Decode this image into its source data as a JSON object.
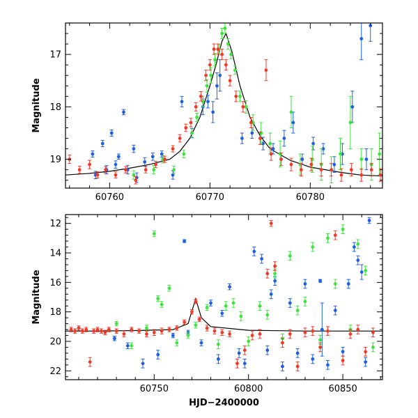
{
  "colors": {
    "blue": "#1f5fe0",
    "green": "#3ee33e",
    "red": "#ef3a2a",
    "model": "#000000"
  },
  "chart_data": [
    {
      "type": "scatter",
      "title": "",
      "xlabel": "",
      "ylabel": "Magnitude",
      "xlim": [
        60755.6,
        60787.2
      ],
      "ylim": [
        19.55,
        16.4
      ],
      "y_inverted": true,
      "xticks": [
        60760,
        60770,
        60780
      ],
      "yticks": [
        17,
        18,
        19
      ],
      "model_curve": {
        "x": [
          60755.6,
          60758,
          60760,
          60762,
          60764,
          60766,
          60767,
          60768,
          60769,
          60770,
          60770.6,
          60771.2,
          60771.6,
          60772.2,
          60773,
          60774,
          60775,
          60776,
          60778,
          60780,
          60783,
          60785,
          60787.2
        ],
        "y": [
          19.3,
          19.27,
          19.23,
          19.17,
          19.1,
          19.0,
          18.85,
          18.6,
          18.2,
          17.6,
          17.2,
          16.75,
          16.6,
          16.95,
          17.6,
          18.2,
          18.55,
          18.8,
          19.02,
          19.15,
          19.25,
          19.3,
          19.32
        ]
      },
      "series": [
        {
          "name": "",
          "color": "blue",
          "x": [
            60758.3,
            60758.6,
            60759.3,
            60759.7,
            60760.2,
            60760.6,
            60760.9,
            60761.4,
            60761.8,
            60762.4,
            60762.7,
            60763.5,
            60764.3,
            60765.2,
            60766.3,
            60767.2,
            60768.2,
            60769.3,
            60769.8,
            60770.3,
            60770.7,
            60771.0,
            60773.2,
            60774.2,
            60775.3,
            60776.3,
            60777.4,
            60778.3,
            60779.2,
            60780.3,
            60781.3,
            60782.4,
            60783.2,
            60784.2,
            60785.1,
            60785.6,
            60786.0
          ],
          "y": [
            18.9,
            19.3,
            18.7,
            19.2,
            18.5,
            19.1,
            18.95,
            18.1,
            19.2,
            18.8,
            19.35,
            19.05,
            18.95,
            18.9,
            19.3,
            17.9,
            18.5,
            18.0,
            17.9,
            18.1,
            17.6,
            17.4,
            18.6,
            18.5,
            18.7,
            18.8,
            18.6,
            18.3,
            19.0,
            18.7,
            18.8,
            19.1,
            18.9,
            18.0,
            16.7,
            19.0,
            16.45
          ],
          "yerr": [
            0.06,
            0.07,
            0.06,
            0.08,
            0.06,
            0.07,
            0.05,
            0.05,
            0.08,
            0.07,
            0.09,
            0.08,
            0.07,
            0.06,
            0.08,
            0.1,
            0.09,
            0.15,
            0.12,
            0.2,
            0.25,
            0.3,
            0.1,
            0.1,
            0.12,
            0.1,
            0.15,
            0.2,
            0.1,
            0.12,
            0.1,
            0.15,
            0.2,
            0.3,
            0.4,
            0.2,
            0.3
          ]
        },
        {
          "name": "",
          "color": "green",
          "x": [
            60762.4,
            60764.4,
            60765.3,
            60766.4,
            60767.4,
            60768.2,
            60768.7,
            60769.3,
            60769.7,
            60770.1,
            60770.5,
            60770.9,
            60771.2,
            60771.5,
            60771.8,
            60772.1,
            60772.5,
            60773.0,
            60773.6,
            60774.3,
            60775.1,
            60776.0,
            60777.0,
            60778.1,
            60779.0,
            60780.2,
            60781.1,
            60782.1,
            60783.0,
            60784.0,
            60785.1,
            60786.1,
            60786.9
          ],
          "y": [
            19.3,
            19.2,
            19.0,
            19.2,
            18.9,
            18.5,
            18.2,
            17.9,
            17.6,
            17.4,
            17.1,
            16.9,
            16.6,
            16.5,
            16.8,
            17.0,
            17.3,
            17.8,
            18.0,
            18.3,
            18.5,
            18.7,
            18.9,
            18.1,
            19.1,
            19.0,
            19.1,
            19.2,
            18.9,
            18.3,
            19.0,
            19.1,
            18.9
          ],
          "yerr": [
            0.08,
            0.08,
            0.07,
            0.07,
            0.07,
            0.08,
            0.08,
            0.1,
            0.12,
            0.15,
            0.12,
            0.1,
            0.1,
            0.1,
            0.1,
            0.08,
            0.08,
            0.1,
            0.12,
            0.15,
            0.2,
            0.2,
            0.25,
            0.3,
            0.2,
            0.25,
            0.3,
            0.25,
            0.3,
            0.5,
            0.2,
            0.3,
            0.4
          ]
        },
        {
          "name": "",
          "color": "red",
          "x": [
            60756.0,
            60757.0,
            60758.0,
            60758.8,
            60759.6,
            60760.6,
            60761.6,
            60762.6,
            60763.6,
            60764.6,
            60765.5,
            60766.3,
            60767.0,
            60767.6,
            60768.1,
            60768.6,
            60769.1,
            60769.6,
            60770.0,
            60770.4,
            60770.8,
            60771.2,
            60771.6,
            60772.0,
            60772.6,
            60773.3,
            60774.1,
            60775.0,
            60775.6,
            60776.1,
            60777.1,
            60778.1,
            60779.1,
            60780.1,
            60781.1,
            60782.1,
            60783.1,
            60784.1,
            60785.1,
            60786.1,
            60787.0
          ],
          "y": [
            19.0,
            19.2,
            19.1,
            19.3,
            19.2,
            19.3,
            19.2,
            19.4,
            19.2,
            19.1,
            19.0,
            18.8,
            18.6,
            18.4,
            18.3,
            18.0,
            17.8,
            17.4,
            17.2,
            16.9,
            16.9,
            17.0,
            17.2,
            17.5,
            17.8,
            18.0,
            18.3,
            18.6,
            17.3,
            18.9,
            19.0,
            19.1,
            19.2,
            19.1,
            19.2,
            19.2,
            19.3,
            19.2,
            19.3,
            19.2,
            19.3
          ],
          "yerr": [
            0.08,
            0.07,
            0.08,
            0.06,
            0.06,
            0.06,
            0.06,
            0.07,
            0.06,
            0.06,
            0.06,
            0.06,
            0.07,
            0.07,
            0.08,
            0.08,
            0.09,
            0.1,
            0.1,
            0.1,
            0.1,
            0.1,
            0.1,
            0.1,
            0.1,
            0.1,
            0.1,
            0.12,
            0.2,
            0.12,
            0.12,
            0.12,
            0.12,
            0.12,
            0.12,
            0.12,
            0.12,
            0.12,
            0.12,
            0.12,
            0.12
          ]
        }
      ]
    },
    {
      "type": "scatter",
      "title": "",
      "xlabel": "HJD−2400000",
      "ylabel": "Magnitude",
      "xlim": [
        60703,
        60871
      ],
      "ylim": [
        22.6,
        11.4
      ],
      "y_inverted": true,
      "xticks": [
        60750,
        60800,
        60850
      ],
      "yticks": [
        12,
        14,
        16,
        18,
        20,
        22
      ],
      "model_curve": {
        "x": [
          60703,
          60720,
          60740,
          60760,
          60768,
          60772,
          60775,
          60780,
          60800,
          60830,
          60871
        ],
        "y": [
          19.3,
          19.3,
          19.27,
          19.2,
          18.8,
          17.1,
          18.4,
          19.0,
          19.25,
          19.3,
          19.3
        ]
      },
      "series": [
        {
          "name": "",
          "color": "blue",
          "x": [
            60729,
            60736,
            60744,
            60752,
            60760,
            60766,
            60768,
            60775,
            60780,
            60784,
            60786,
            60790,
            60795,
            60798,
            60803,
            60807,
            60810,
            60812,
            60814,
            60818,
            60822,
            60826,
            60830,
            60834,
            60838,
            60839,
            60842,
            60846,
            60850,
            60853,
            60856,
            60858,
            60860,
            60862,
            60864
          ],
          "y": [
            19.8,
            20.3,
            21.5,
            20.9,
            19.6,
            13.2,
            19.4,
            20.1,
            17.4,
            21.2,
            18.1,
            16.3,
            20.8,
            21.5,
            13.9,
            14.4,
            20.6,
            16.8,
            15.9,
            21.7,
            17.4,
            20.8,
            16.1,
            21.2,
            15.9,
            19.2,
            21.6,
            17.9,
            20.7,
            16.1,
            13.6,
            14.5,
            15.3,
            21.4,
            11.8
          ],
          "yerr": [
            0.15,
            0.2,
            0.3,
            0.3,
            0.15,
            0.1,
            0.15,
            0.2,
            0.2,
            0.3,
            0.2,
            0.2,
            0.3,
            0.3,
            0.3,
            0.3,
            0.3,
            0.3,
            0.3,
            0.3,
            0.3,
            0.3,
            0.3,
            0.3,
            0.1,
            1.8,
            0.3,
            0.3,
            0.3,
            0.3,
            0.3,
            0.3,
            0.5,
            0.3,
            0.2
          ]
        },
        {
          "name": "",
          "color": "green",
          "x": [
            60730,
            60738,
            60746,
            60750,
            60752,
            60754,
            60758,
            60762,
            60768,
            60772,
            60778,
            60784,
            60788,
            60792,
            60796,
            60800,
            60806,
            60810,
            60814,
            60818,
            60822,
            60826,
            60830,
            60834,
            60838,
            60842,
            60846,
            60850,
            60854,
            60858,
            60862,
            60866
          ],
          "y": [
            18.8,
            20.3,
            19.1,
            12.7,
            17.1,
            17.5,
            16.4,
            20.1,
            19.6,
            18.9,
            17.7,
            20.2,
            17.6,
            17.4,
            18.3,
            20.0,
            17.6,
            18.2,
            15.4,
            19.8,
            14.2,
            17.9,
            17.3,
            13.6,
            19.9,
            13.0,
            16.1,
            12.4,
            19.2,
            13.4,
            15.2,
            20.4
          ],
          "yerr": [
            0.15,
            0.2,
            0.2,
            0.2,
            0.2,
            0.2,
            0.2,
            0.2,
            0.2,
            0.2,
            0.2,
            0.3,
            0.3,
            0.3,
            0.3,
            0.3,
            0.3,
            0.3,
            0.3,
            0.3,
            0.3,
            0.3,
            0.3,
            0.3,
            0.3,
            0.3,
            0.3,
            0.3,
            0.3,
            0.3,
            0.3,
            0.3
          ]
        },
        {
          "name": "",
          "color": "red",
          "x": [
            60706,
            60708,
            60710,
            60712,
            60714,
            60716,
            60718,
            60720,
            60722,
            60724,
            60726,
            60730,
            60734,
            60738,
            60742,
            60746,
            60750,
            60754,
            60758,
            60762,
            60766,
            60770,
            60772,
            60774,
            60778,
            60782,
            60786,
            60790,
            60794,
            60798,
            60802,
            60806,
            60810,
            60812,
            60814,
            60818,
            60822,
            60826,
            60830,
            60834,
            60838,
            60842,
            60846,
            60850,
            60854,
            60858,
            60862,
            60866
          ],
          "y": [
            19.2,
            19.3,
            19.1,
            19.3,
            19.2,
            21.4,
            19.3,
            19.2,
            19.3,
            19.4,
            19.2,
            19.3,
            19.5,
            19.2,
            19.3,
            19.5,
            19.4,
            19.3,
            19.2,
            19.1,
            18.7,
            18.0,
            17.3,
            18.5,
            19.1,
            19.3,
            19.4,
            19.5,
            21.5,
            20.6,
            19.6,
            19.5,
            15.4,
            12.0,
            14.9,
            20.1,
            19.5,
            21.7,
            19.4,
            19.3,
            20.4,
            19.3,
            12.8,
            21.3,
            19.5,
            19.2,
            20.7,
            19.4
          ],
          "yerr": [
            0.15,
            0.15,
            0.15,
            0.15,
            0.15,
            0.3,
            0.15,
            0.15,
            0.15,
            0.15,
            0.15,
            0.15,
            0.2,
            0.15,
            0.15,
            0.2,
            0.2,
            0.2,
            0.15,
            0.15,
            0.15,
            0.15,
            0.15,
            0.15,
            0.2,
            0.2,
            0.2,
            0.2,
            0.3,
            0.3,
            0.3,
            0.3,
            0.3,
            0.2,
            0.3,
            0.3,
            0.3,
            0.3,
            0.3,
            0.3,
            0.3,
            0.3,
            0.3,
            0.3,
            0.3,
            0.3,
            0.3,
            0.3
          ]
        }
      ]
    }
  ]
}
